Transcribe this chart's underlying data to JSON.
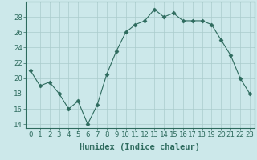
{
  "x": [
    0,
    1,
    2,
    3,
    4,
    5,
    6,
    7,
    8,
    9,
    10,
    11,
    12,
    13,
    14,
    15,
    16,
    17,
    18,
    19,
    20,
    21,
    22,
    23
  ],
  "y": [
    21,
    19,
    19.5,
    18,
    16,
    17,
    14,
    16.5,
    20.5,
    23.5,
    26,
    27,
    27.5,
    29,
    28,
    28.5,
    27.5,
    27.5,
    27.5,
    27,
    25,
    23,
    20,
    18
  ],
  "line_color": "#2e6b5e",
  "marker": "D",
  "marker_size": 2.5,
  "bg_color": "#cce8ea",
  "grid_color": "#aacccc",
  "xlabel": "Humidex (Indice chaleur)",
  "xlim": [
    -0.5,
    23.5
  ],
  "ylim": [
    13.5,
    30
  ],
  "yticks": [
    14,
    16,
    18,
    20,
    22,
    24,
    26,
    28
  ],
  "xticks": [
    0,
    1,
    2,
    3,
    4,
    5,
    6,
    7,
    8,
    9,
    10,
    11,
    12,
    13,
    14,
    15,
    16,
    17,
    18,
    19,
    20,
    21,
    22,
    23
  ],
  "xlabel_fontsize": 7.5,
  "tick_fontsize": 6.5
}
